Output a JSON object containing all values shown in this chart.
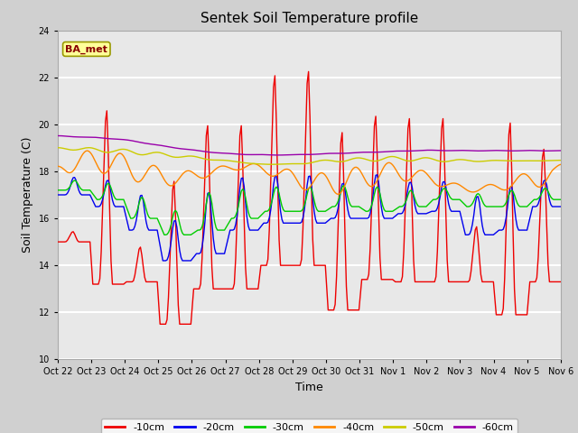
{
  "title": "Sentek Soil Temperature profile",
  "xlabel": "Time",
  "ylabel": "Soil Temperature (C)",
  "ylim": [
    10,
    24
  ],
  "yticks": [
    10,
    12,
    14,
    16,
    18,
    20,
    22,
    24
  ],
  "annotation": "BA_met",
  "legend_labels": [
    "-10cm",
    "-20cm",
    "-30cm",
    "-40cm",
    "-50cm",
    "-60cm"
  ],
  "line_colors": [
    "#ee0000",
    "#0000ee",
    "#00cc00",
    "#ff8800",
    "#cccc00",
    "#9900aa"
  ],
  "fig_facecolor": "#d0d0d0",
  "ax_facecolor": "#e8e8e8",
  "grid_color": "white",
  "tick_labels": [
    "Oct 22",
    "Oct 23",
    "Oct 24",
    "Oct 25",
    "Oct 26",
    "Oct 27",
    "Oct 28",
    "Oct 29",
    "Oct 30",
    "Oct 31",
    "Nov 1",
    "Nov 2",
    "Nov 3",
    "Nov 4",
    "Nov 5",
    "Nov 6"
  ],
  "tick_positions": [
    0,
    1,
    2,
    3,
    4,
    5,
    6,
    7,
    8,
    9,
    10,
    11,
    12,
    13,
    14,
    15
  ]
}
